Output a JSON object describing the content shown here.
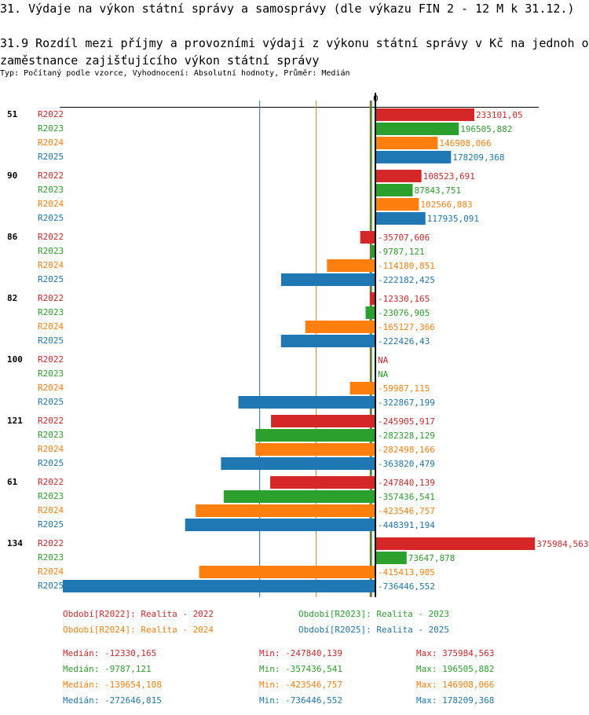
{
  "title": "31. Výdaje na výkon státní správy a samosprávy (dle výkazu FIN 2 - 12 M k 31.12.)",
  "subtitle": "31.9 Rozdíl mezi příjmy a provozními výdaji z výkonu státní správy v Kč na jednoh o zaměstnance zajišťujícího výkon státní správy",
  "info": "Typ: Počítaný podle vzorce, Vyhodnocení: Absolutní hodnoty, Průměr: Medián",
  "chart_data": {
    "type": "bar",
    "orientation": "horizontal",
    "zero_label": "0",
    "series_names": [
      "R2022",
      "R2023",
      "R2024",
      "R2025"
    ],
    "colors": [
      "#d62728",
      "#2ca02c",
      "#ff7f0e",
      "#1f77b4"
    ],
    "groups": [
      {
        "label": "51",
        "values": [
          233101.05,
          196505.882,
          146908.066,
          178209.368
        ],
        "texts": [
          "233101,05",
          "196505,882",
          "146908,066",
          "178209,368"
        ]
      },
      {
        "label": "90",
        "values": [
          108523.691,
          87843.751,
          102566.883,
          117935.091
        ],
        "texts": [
          "108523,691",
          "87843,751",
          "102566,883",
          "117935,091"
        ]
      },
      {
        "label": "86",
        "values": [
          -35707.606,
          -9787.121,
          -114180.851,
          -222182.425
        ],
        "texts": [
          "-35707,606",
          "-9787,121",
          "-114180,851",
          "-222182,425"
        ]
      },
      {
        "label": "82",
        "values": [
          -12330.165,
          -23076.905,
          -165127.366,
          -222426.43
        ],
        "texts": [
          "-12330,165",
          "-23076,905",
          "-165127,366",
          "-222426,43"
        ]
      },
      {
        "label": "100",
        "values": [
          null,
          null,
          -59987.115,
          -322867.199
        ],
        "texts": [
          "NA",
          "NA",
          "-59987,115",
          "-322867,199"
        ]
      },
      {
        "label": "121",
        "values": [
          -245905.917,
          -282328.129,
          -282498.166,
          -363820.479
        ],
        "texts": [
          "-245905,917",
          "-282328,129",
          "-282498,166",
          "-363820,479"
        ]
      },
      {
        "label": "61",
        "values": [
          -247840.139,
          -357436.541,
          -423546.757,
          -448391.194
        ],
        "texts": [
          "-247840,139",
          "-357436,541",
          "-423546,757",
          "-448391,194"
        ]
      },
      {
        "label": "134",
        "values": [
          375984.563,
          73647.878,
          -415413.905,
          -736446.552
        ],
        "texts": [
          "375984,563",
          "73647,878",
          "-415413,905",
          "-736446,552"
        ]
      }
    ],
    "medians": [
      -12330.165,
      -9787.121,
      -139654.108,
      -272646.815
    ],
    "legend": [
      "Období[R2022]: Realita - 2022",
      "Období[R2023]: Realita - 2023",
      "Období[R2024]: Realita - 2024",
      "Období[R2025]: Realita - 2025"
    ],
    "stats": [
      {
        "median": "Medián: -12330,165",
        "min": "Min: -247840,139",
        "max": "Max: 375984,563"
      },
      {
        "median": "Medián: -9787,121",
        "min": "Min: -357436,541",
        "max": "Max: 196505,882"
      },
      {
        "median": "Medián: -139654,108",
        "min": "Min: -423546,757",
        "max": "Max: 146908,066"
      },
      {
        "median": "Medián: -272646,815",
        "min": "Min: -736446,552",
        "max": "Max: 178209,368"
      }
    ]
  }
}
